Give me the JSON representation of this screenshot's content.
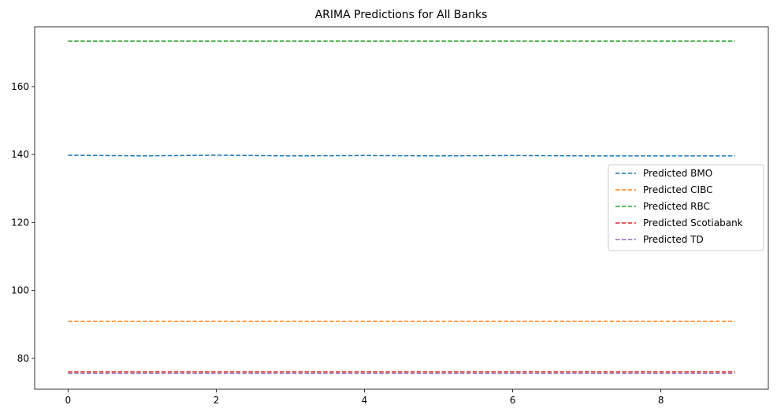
{
  "chart_data": {
    "type": "line",
    "title": "ARIMA Predictions for All Banks",
    "xlabel": "",
    "ylabel": "",
    "x": [
      0,
      1,
      2,
      3,
      4,
      5,
      6,
      7,
      8,
      9
    ],
    "xlim": [
      -0.45,
      9.45
    ],
    "ylim": [
      70.9,
      177.6
    ],
    "xticks": [
      0,
      2,
      4,
      6,
      8
    ],
    "yticks": [
      80,
      100,
      120,
      140,
      160
    ],
    "grid": false,
    "legend_position": "center-right",
    "line_style": "dashed",
    "series": [
      {
        "name": "Predicted BMO",
        "color": "#1f77b4",
        "values": [
          139.8,
          139.6,
          139.8,
          139.6,
          139.7,
          139.6,
          139.7,
          139.6,
          139.6,
          139.6
        ]
      },
      {
        "name": "Predicted CIBC",
        "color": "#ff7f0e",
        "values": [
          90.9,
          90.9,
          90.9,
          90.9,
          90.9,
          90.9,
          90.9,
          90.9,
          90.9,
          90.9
        ]
      },
      {
        "name": "Predicted RBC",
        "color": "#2ca02c",
        "values": [
          173.4,
          173.4,
          173.4,
          173.4,
          173.4,
          173.4,
          173.4,
          173.4,
          173.4,
          173.4
        ]
      },
      {
        "name": "Predicted Scotiabank",
        "color": "#d62728",
        "values": [
          76.0,
          76.0,
          76.0,
          76.0,
          76.0,
          76.0,
          76.0,
          76.0,
          76.0,
          76.0
        ]
      },
      {
        "name": "Predicted TD",
        "color": "#9467bd",
        "values": [
          75.5,
          75.5,
          75.5,
          75.5,
          75.5,
          75.5,
          75.5,
          75.5,
          75.5,
          75.5
        ]
      }
    ]
  }
}
